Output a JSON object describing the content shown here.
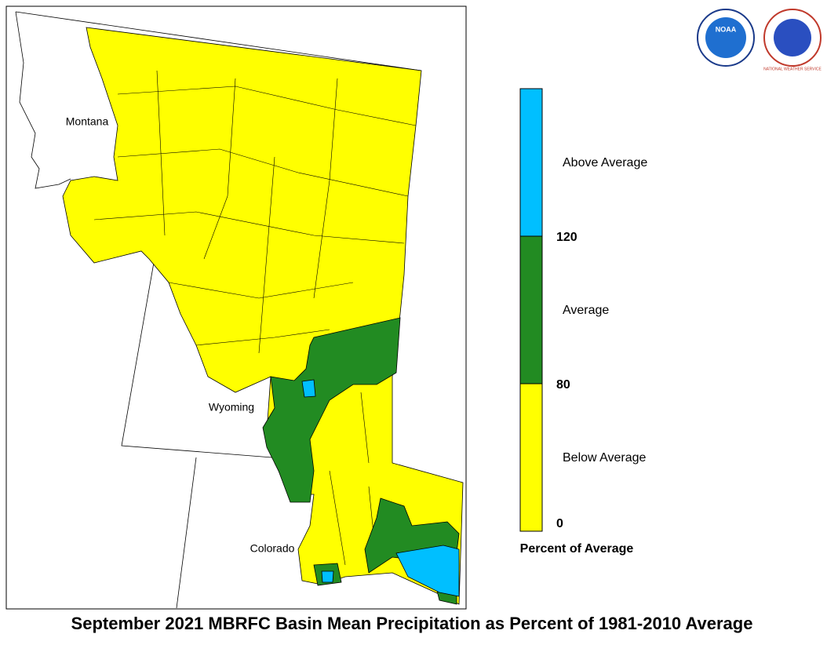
{
  "title": "September 2021 MBRFC Basin Mean Precipitation as Percent of 1981-2010 Average",
  "map": {
    "states": [
      "Montana",
      "Wyoming",
      "Colorado"
    ]
  },
  "legend": {
    "title": "Percent of Average",
    "classes": [
      {
        "label": "Below Average",
        "color": "#ffff00"
      },
      {
        "label": "Average",
        "color": "#228b22"
      },
      {
        "label": "Above Average",
        "color": "#00bfff"
      }
    ],
    "breaks": [
      "0",
      "80",
      "120"
    ]
  },
  "logos": [
    "NOAA",
    "NATIONAL WEATHER SERVICE"
  ]
}
